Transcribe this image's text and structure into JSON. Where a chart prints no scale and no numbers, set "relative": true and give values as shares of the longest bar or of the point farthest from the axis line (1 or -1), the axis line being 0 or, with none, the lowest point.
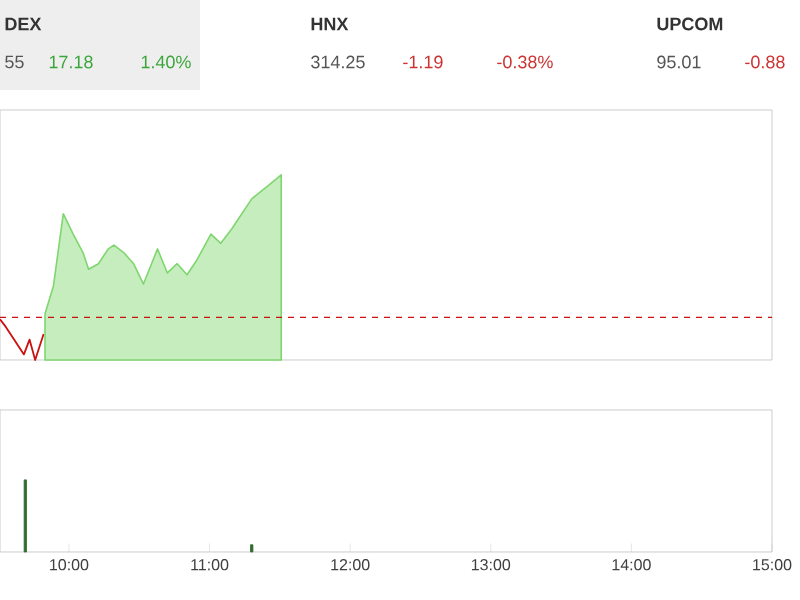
{
  "chart_data": [
    {
      "type": "other",
      "annotations": [
        "DEX",
        "55",
        "17.18",
        "1.40%",
        "HNX",
        "314.25",
        "-1.19",
        "-0.38%",
        "UPCOM",
        "95.01",
        "-0.88"
      ]
    },
    {
      "type": "line",
      "relative": true,
      "xlim": [
        9.51,
        15
      ],
      "tick_labels": false,
      "x": [
        9.51,
        9.55,
        9.61,
        9.68,
        9.72,
        9.76,
        9.82
      ],
      "series": [
        {
          "type": "line",
          "color": "#cc1111",
          "values": [
            0.22,
            0.18,
            0.11,
            0.03,
            0.11,
            0,
            0.14
          ]
        },
        {
          "type": "area",
          "color": "#7fd66f",
          "x": [
            9.83,
            9.89,
            9.96,
            10.03,
            10.1,
            10.14,
            10.21,
            10.28,
            10.32,
            10.39,
            10.46,
            10.53,
            10.63,
            10.7,
            10.77,
            10.84,
            10.91,
            11.01,
            11.08,
            11.16,
            11.3,
            11.43,
            11.51
          ],
          "values": [
            0.25,
            0.4,
            0.79,
            0.68,
            0.58,
            0.49,
            0.52,
            0.6,
            0.62,
            0.58,
            0.52,
            0.41,
            0.6,
            0.47,
            0.52,
            0.46,
            0.54,
            0.68,
            0.63,
            0.71,
            0.87,
            0.95,
            1
          ]
        }
      ],
      "ref_lines": [
        {
          "axis": "y",
          "value": 0.23,
          "color": "#cc1111",
          "line_style": "dashed"
        }
      ]
    },
    {
      "type": "bar",
      "relative": true,
      "xlim": [
        9.51,
        15
      ],
      "tick_labels": "x",
      "x": [
        9.69,
        11.3
      ],
      "values": [
        1,
        0.1
      ],
      "color": "#2e6b2e",
      "xticks": [
        {
          "value": 10,
          "label": "10:00"
        },
        {
          "value": 11,
          "label": "11:00"
        },
        {
          "value": 12,
          "label": "12:00"
        },
        {
          "value": 13,
          "label": "13:00"
        },
        {
          "value": 14,
          "label": "14:00"
        },
        {
          "value": 15,
          "label": "15:00"
        }
      ]
    }
  ]
}
